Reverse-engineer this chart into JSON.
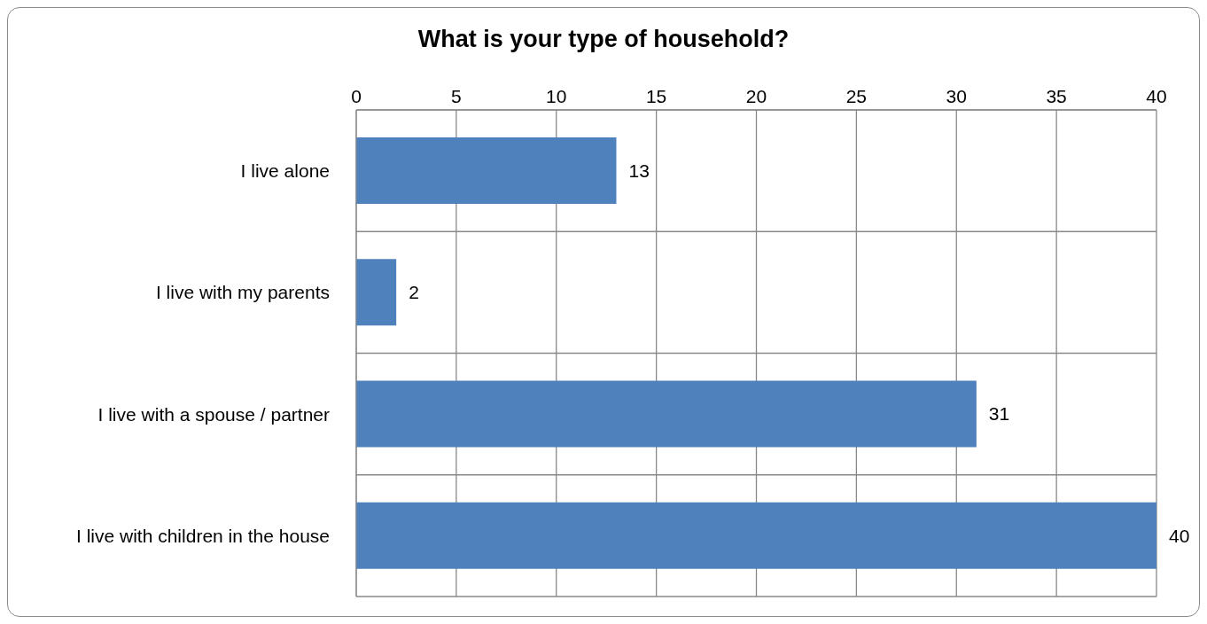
{
  "chart_data": {
    "type": "bar",
    "orientation": "horizontal",
    "title": "What is your type of household?",
    "categories": [
      "I live alone",
      "I live with my parents",
      "I live with a spouse / partner",
      "I live with children in the house"
    ],
    "values": [
      13,
      2,
      31,
      40
    ],
    "color": "#4f81bd",
    "xlim": [
      0,
      40
    ],
    "xticks": [
      0,
      5,
      10,
      15,
      20,
      25,
      30,
      35,
      40
    ],
    "grid": true,
    "data_labels": true
  }
}
